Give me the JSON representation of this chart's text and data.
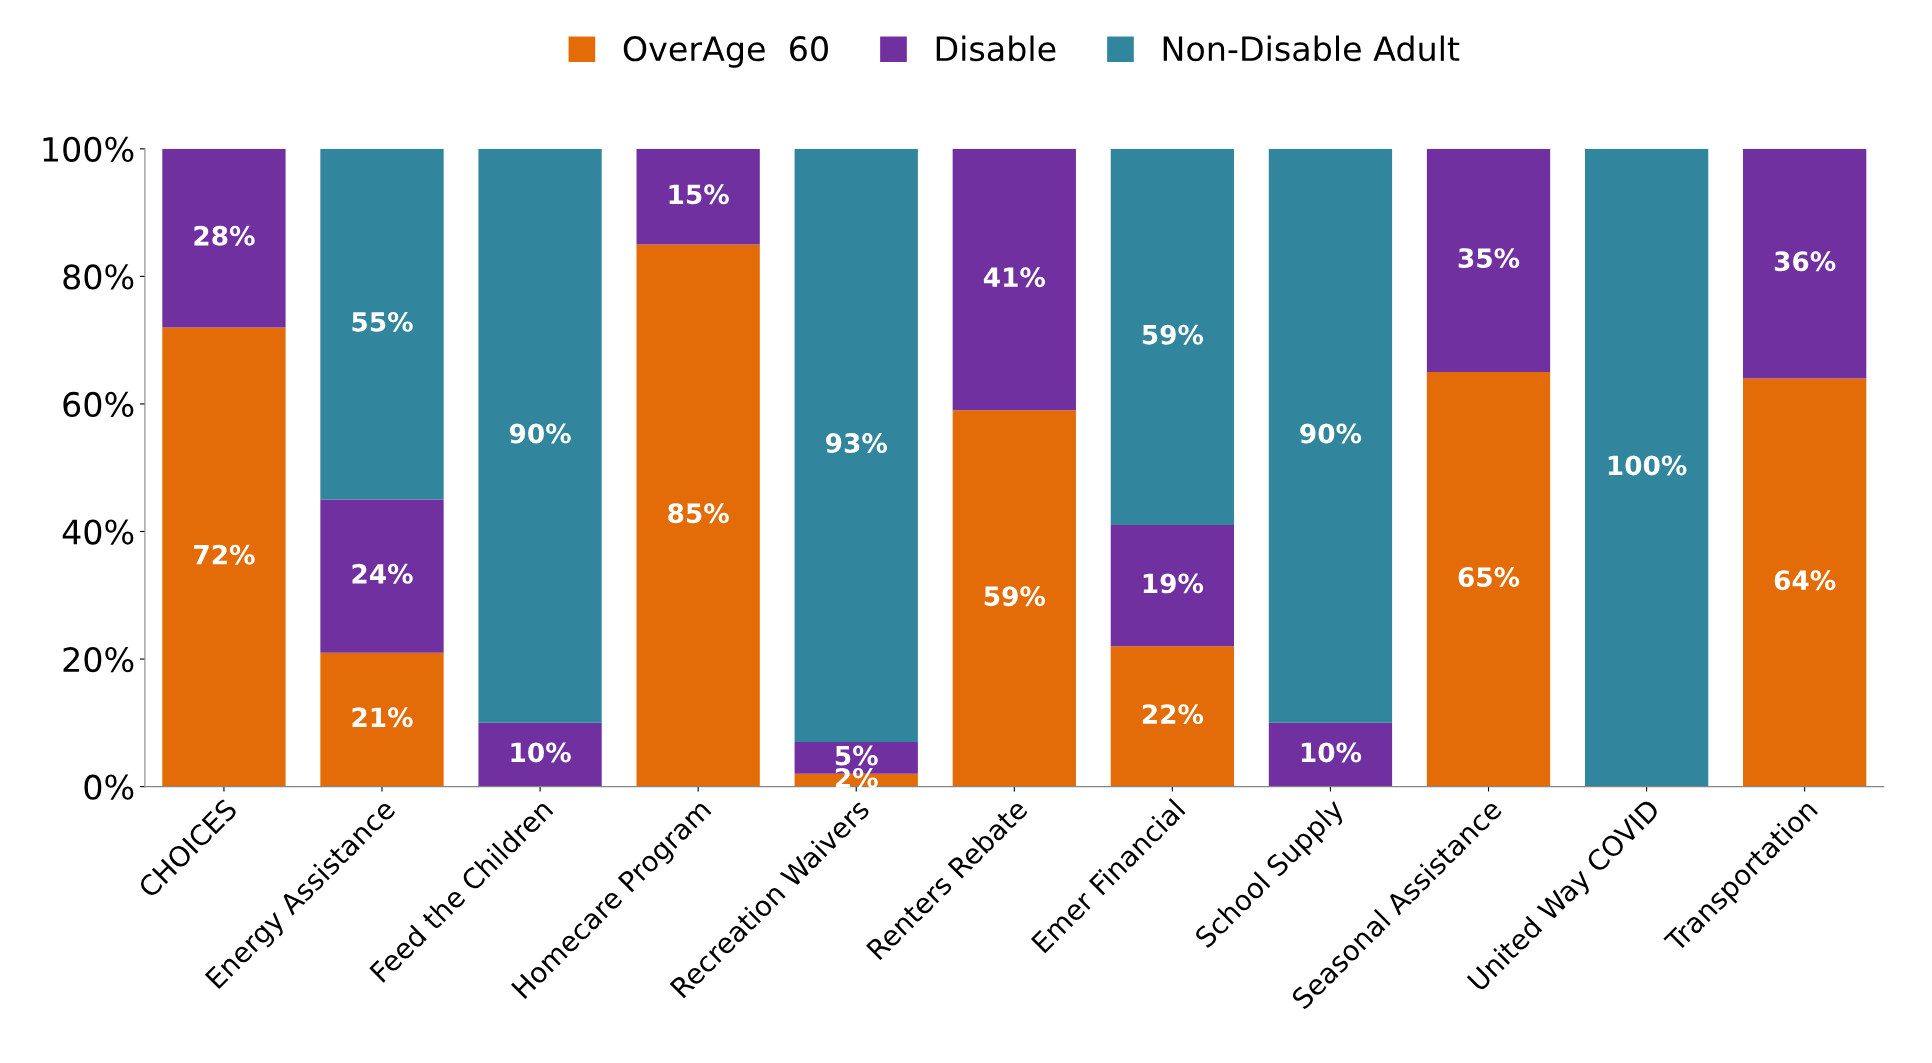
{
  "chart_data": {
    "type": "bar",
    "stacked": true,
    "categories": [
      "CHOICES",
      "Energy Assistance",
      "Feed the Children",
      "Homecare Program",
      "Recreation Waivers",
      "Renters Rebate",
      "Emer Financial",
      "School Supply",
      "Seasonal Assistance",
      "United Way COVID",
      "Transportation"
    ],
    "series": [
      {
        "name": "OverAge  60",
        "color": "#e36c09",
        "values": [
          72,
          21,
          0,
          85,
          2,
          59,
          22,
          0,
          65,
          0,
          64
        ],
        "value_labels": [
          "72%",
          "21%",
          null,
          "85%",
          "2%",
          "59%",
          "22%",
          null,
          "65%",
          null,
          "64%"
        ]
      },
      {
        "name": "Disable",
        "color": "#7030a0",
        "values": [
          28,
          24,
          10,
          15,
          5,
          41,
          19,
          10,
          35,
          0,
          36
        ],
        "value_labels": [
          "28%",
          "24%",
          "10%",
          "15%",
          "5%",
          "41%",
          "19%",
          "10%",
          "35%",
          null,
          "36%"
        ]
      },
      {
        "name": "Non-Disable Adult",
        "color": "#31859c",
        "values": [
          0,
          55,
          90,
          0,
          93,
          0,
          59,
          90,
          0,
          100,
          0
        ],
        "value_labels": [
          null,
          "55%",
          "90%",
          null,
          "93%",
          null,
          "59%",
          "90%",
          null,
          "100%",
          null
        ]
      }
    ],
    "ylim": [
      0,
      100
    ],
    "yticks": [
      {
        "value": 0,
        "label": "0%"
      },
      {
        "value": 20,
        "label": "20%"
      },
      {
        "value": 40,
        "label": "40%"
      },
      {
        "value": 60,
        "label": "60%"
      },
      {
        "value": 80,
        "label": "80%"
      },
      {
        "value": 100,
        "label": "100%"
      }
    ],
    "grid": false,
    "legend": "top"
  }
}
